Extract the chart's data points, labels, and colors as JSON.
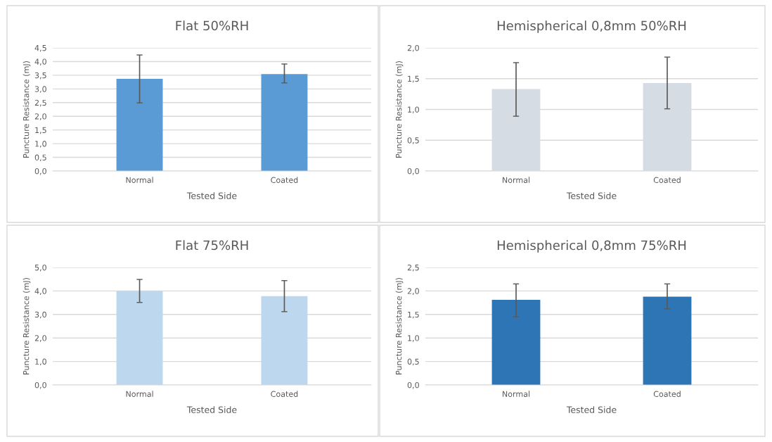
{
  "chart_data": [
    {
      "type": "bar",
      "title": "Flat 50%RH",
      "xlabel": "Tested Side",
      "ylabel": "Puncture Resistance (mJ)",
      "categories": [
        "Normal",
        "Coated"
      ],
      "values": [
        3.37,
        3.54
      ],
      "errors": [
        [
          2.49,
          4.24
        ],
        [
          3.22,
          3.91
        ]
      ],
      "color": "#5b9bd5",
      "ylim": [
        0,
        4.5
      ],
      "yticks": [
        {
          "value": 0,
          "label": "0,0"
        },
        {
          "value": 0.5,
          "label": "0,5"
        },
        {
          "value": 1,
          "label": "1,0"
        },
        {
          "value": 1.5,
          "label": "1,5"
        },
        {
          "value": 2,
          "label": "2,0"
        },
        {
          "value": 2.5,
          "label": "2,5"
        },
        {
          "value": 3,
          "label": "3,0"
        },
        {
          "value": 3.5,
          "label": "3,5"
        },
        {
          "value": 4,
          "label": "4,0"
        },
        {
          "value": 4.5,
          "label": "4,5"
        }
      ],
      "grid": "y"
    },
    {
      "type": "bar",
      "title": "Hemispherical 0,8mm 50%RH",
      "xlabel": "Tested Side",
      "ylabel": "Puncture Resistance (mJ)",
      "categories": [
        "Normal",
        "Coated"
      ],
      "values": [
        1.33,
        1.43
      ],
      "errors": [
        [
          0.89,
          1.76
        ],
        [
          1.01,
          1.85
        ]
      ],
      "color": "#d6dce4",
      "ylim": [
        0,
        2
      ],
      "yticks": [
        {
          "value": 0,
          "label": "0,0"
        },
        {
          "value": 0.5,
          "label": "0,5"
        },
        {
          "value": 1,
          "label": "1,0"
        },
        {
          "value": 1.5,
          "label": "1,5"
        },
        {
          "value": 2,
          "label": "2,0"
        }
      ],
      "grid": "y"
    },
    {
      "type": "bar",
      "title": "Flat 75%RH",
      "xlabel": "Tested Side",
      "ylabel": "Puncture Resistance (mJ)",
      "categories": [
        "Normal",
        "Coated"
      ],
      "values": [
        4.0,
        3.78
      ],
      "errors": [
        [
          3.51,
          4.49
        ],
        [
          3.12,
          4.44
        ]
      ],
      "color": "#bdd7ee",
      "ylim": [
        0,
        5
      ],
      "yticks": [
        {
          "value": 0,
          "label": "0,0"
        },
        {
          "value": 1,
          "label": "1,0"
        },
        {
          "value": 2,
          "label": "2,0"
        },
        {
          "value": 3,
          "label": "3,0"
        },
        {
          "value": 4,
          "label": "4,0"
        },
        {
          "value": 5,
          "label": "5,0"
        }
      ],
      "grid": "y"
    },
    {
      "type": "bar",
      "title": "Hemispherical 0,8mm 75%RH",
      "xlabel": "Tested Side",
      "ylabel": "Puncture Resistance (mJ)",
      "categories": [
        "Normal",
        "Coated"
      ],
      "values": [
        1.81,
        1.88
      ],
      "errors": [
        [
          1.45,
          2.15
        ],
        [
          1.62,
          2.15
        ]
      ],
      "color": "#2e75b6",
      "ylim": [
        0,
        2.5
      ],
      "yticks": [
        {
          "value": 0,
          "label": "0,0"
        },
        {
          "value": 0.5,
          "label": "0,5"
        },
        {
          "value": 1,
          "label": "1,0"
        },
        {
          "value": 1.5,
          "label": "1,5"
        },
        {
          "value": 2,
          "label": "2,0"
        },
        {
          "value": 2.5,
          "label": "2,5"
        }
      ],
      "grid": "y"
    }
  ]
}
